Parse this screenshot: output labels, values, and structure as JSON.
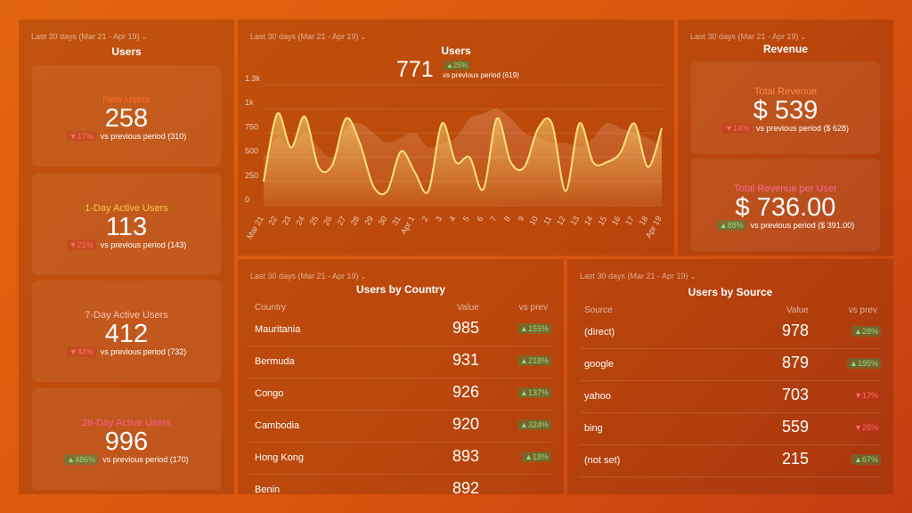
{
  "users_panel": {
    "period": "Last 30 days (Mar 21 - Apr 19)",
    "title": "Users",
    "cards": [
      {
        "label": "New Users",
        "value": 258,
        "change": "17%",
        "direction": "down",
        "comparison": "vs previous period (310)",
        "color": "#ff6a1f"
      },
      {
        "label": "1-Day Active Users",
        "value": 113,
        "change": "21%",
        "direction": "down",
        "comparison": "vs previous period (143)",
        "color": "#f7c948"
      },
      {
        "label": "7-Day Active Users",
        "value": 412,
        "change": "44%",
        "direction": "down",
        "comparison": "vs previous period (732)",
        "color": "#f7c0ae"
      },
      {
        "label": "28-Day Active Users",
        "value": 996,
        "change": "486%",
        "direction": "up",
        "comparison": "vs previous period (170)",
        "color": "#ff5d8f"
      }
    ]
  },
  "chart_panel": {
    "period": "Last 30 days (Mar 21 - Apr 19)",
    "total": 771,
    "change": "25%",
    "direction": "up",
    "comparison": "vs previous period (619)"
  },
  "chart_data": {
    "type": "line",
    "title": "Users",
    "categories": [
      "Mar 21",
      "22",
      "23",
      "24",
      "25",
      "26",
      "27",
      "28",
      "29",
      "30",
      "31",
      "Apr 1",
      "2",
      "3",
      "4",
      "5",
      "6",
      "7",
      "8",
      "9",
      "10",
      "11",
      "12",
      "13",
      "14",
      "15",
      "16",
      "17",
      "18",
      "Apr 19"
    ],
    "series": [
      {
        "color": "#ffe27a",
        "values": [
          250,
          950,
          600,
          920,
          400,
          420,
          900,
          650,
          200,
          150,
          560,
          350,
          150,
          850,
          450,
          500,
          170,
          900,
          450,
          400,
          800,
          850,
          150,
          850,
          450,
          450,
          550,
          850,
          400,
          800
        ]
      },
      {
        "color": "#f4c6a8",
        "values": [
          500,
          700,
          600,
          750,
          600,
          500,
          800,
          850,
          750,
          650,
          700,
          750,
          600,
          650,
          700,
          900,
          950,
          1000,
          900,
          750,
          700,
          650,
          650,
          600,
          700,
          850,
          800,
          750,
          700,
          600
        ]
      }
    ],
    "ylim": [
      0,
      1250
    ],
    "yticks": [
      0,
      250,
      500,
      750,
      {
        "value": 1000,
        "label": "1k"
      },
      {
        "value": 1250,
        "label": "1.3k"
      }
    ],
    "grid": true
  },
  "revenue_panel": {
    "period": "Last 30 days (Mar 21 - Apr 19)",
    "title": "Revenue",
    "cards": [
      {
        "label": "Total Revenue",
        "value": "$ 539",
        "change": "14%",
        "direction": "down",
        "comparison": "vs previous period ($ 628)",
        "color": "#ff8a3d"
      },
      {
        "label": "Total Revenue per User",
        "value": "$ 736.00",
        "change": "88%",
        "direction": "up",
        "comparison": "vs previous period ($ 391.00)",
        "color": "#ff6699"
      }
    ]
  },
  "country_table": {
    "period": "Last 30 days (Mar 21 - Apr 19)",
    "title": "Users by Country",
    "columns": [
      "Country",
      "Value",
      "vs prev"
    ],
    "rows": [
      {
        "name": "Mauritania",
        "value": 985,
        "change": "155%",
        "direction": "up"
      },
      {
        "name": "Bermuda",
        "value": 931,
        "change": "218%",
        "direction": "up"
      },
      {
        "name": "Congo",
        "value": 926,
        "change": "137%",
        "direction": "up"
      },
      {
        "name": "Cambodia",
        "value": 920,
        "change": "324%",
        "direction": "up"
      },
      {
        "name": "Hong Kong",
        "value": 893,
        "change": "18%",
        "direction": "up"
      },
      {
        "name": "Benin",
        "value": 892
      }
    ]
  },
  "source_table": {
    "period": "Last 30 days (Mar 21 - Apr 19)",
    "title": "Users by Source",
    "columns": [
      "Source",
      "Value",
      "vs prev"
    ],
    "rows": [
      {
        "name": "(direct)",
        "value": 978,
        "change": "28%",
        "direction": "up"
      },
      {
        "name": "google",
        "value": 879,
        "change": "195%",
        "direction": "up"
      },
      {
        "name": "yahoo",
        "value": 703,
        "change": "17%",
        "direction": "down"
      },
      {
        "name": "bing",
        "value": 559,
        "change": "25%",
        "direction": "down"
      },
      {
        "name": "(not set)",
        "value": 215,
        "change": "67%",
        "direction": "up"
      }
    ]
  }
}
